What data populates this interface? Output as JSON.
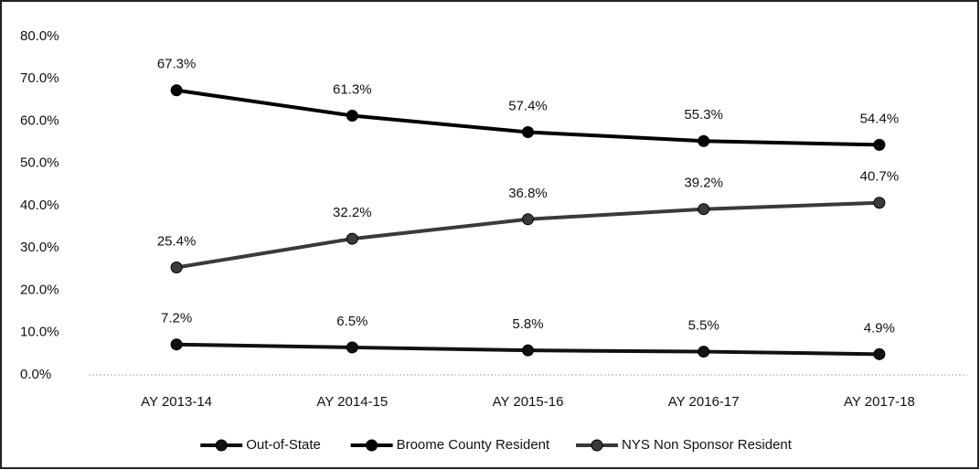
{
  "chart_data": {
    "type": "line",
    "categories": [
      "AY 2013-14",
      "AY 2014-15",
      "AY 2015-16",
      "AY 2016-17",
      "AY 2017-18"
    ],
    "series": [
      {
        "name": "Out-of-State",
        "color": "#111111",
        "values": [
          7.2,
          6.5,
          5.8,
          5.5,
          4.9
        ],
        "value_labels": [
          "7.2%",
          "6.5%",
          "5.8%",
          "5.5%",
          "4.9%"
        ]
      },
      {
        "name": "Broome County Resident",
        "color": "#000000",
        "values": [
          67.3,
          61.3,
          57.4,
          55.3,
          54.4
        ],
        "value_labels": [
          "67.3%",
          "61.3%",
          "57.4%",
          "55.3%",
          "54.4%"
        ]
      },
      {
        "name": "NYS Non Sponsor Resident",
        "color": "#3a3a3a",
        "values": [
          25.4,
          32.2,
          36.8,
          39.2,
          40.7
        ],
        "value_labels": [
          "25.4%",
          "32.2%",
          "36.8%",
          "39.2%",
          "40.7%"
        ]
      }
    ],
    "ylim": [
      0,
      80
    ],
    "yticks": [
      {
        "value": 0,
        "label": "0.0%"
      },
      {
        "value": 10,
        "label": "10.0%"
      },
      {
        "value": 20,
        "label": "20.0%"
      },
      {
        "value": 30,
        "label": "30.0%"
      },
      {
        "value": 40,
        "label": "40.0%"
      },
      {
        "value": 50,
        "label": "50.0%"
      },
      {
        "value": 60,
        "label": "60.0%"
      },
      {
        "value": 70,
        "label": "70.0%"
      },
      {
        "value": 80,
        "label": "80.0%"
      }
    ],
    "grid": false,
    "legend": "bottom"
  }
}
